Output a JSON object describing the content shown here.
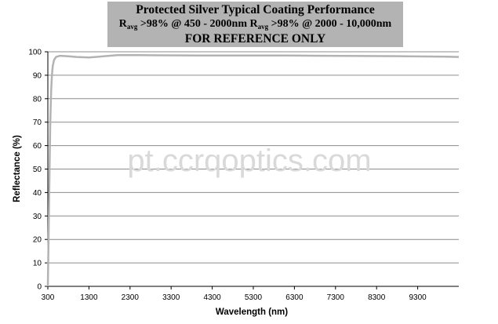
{
  "title": {
    "line1": "Protected Silver Typical Coating Performance",
    "line2_r1": "R",
    "line2_sub1": "avg",
    "line2_mid": " >98% @ 450 - 2000nm R",
    "line2_sub2": "avg",
    "line2_end": " >98% @ 2000 - 10,000nm",
    "line3": "FOR REFERENCE ONLY"
  },
  "watermark": "pt.ccrqoptics.com",
  "colors": {
    "title_bg": "#b3b3b3",
    "series": "#b3b3b3",
    "grid": "#8c8c8c"
  },
  "chart_data": {
    "type": "line",
    "title": "Protected Silver Typical Coating Performance",
    "xlabel": "Wavelength (nm)",
    "ylabel": "Reflectance (%)",
    "xlim": [
      300,
      10300
    ],
    "ylim": [
      0,
      100
    ],
    "xticks": [
      300,
      1300,
      2300,
      3300,
      4300,
      5300,
      6300,
      7300,
      8300,
      9300
    ],
    "yticks": [
      0,
      10,
      20,
      30,
      40,
      50,
      60,
      70,
      80,
      90,
      100
    ],
    "grid": "horizontal",
    "legend": "none",
    "series": [
      {
        "values_x": [
          300,
          320,
          340,
          360,
          380,
          400,
          420,
          450,
          500,
          600,
          800,
          1000,
          1300,
          1600,
          2000,
          2500,
          3000,
          4000,
          5000,
          6000,
          7000,
          8000,
          9000,
          10000,
          10300
        ],
        "values_y": [
          0,
          22,
          48,
          70,
          83,
          90,
          94,
          96.5,
          97.8,
          98.3,
          98.1,
          97.8,
          97.6,
          98.0,
          98.6,
          98.6,
          98.5,
          98.4,
          98.4,
          98.4,
          98.3,
          98.2,
          98.1,
          97.9,
          97.8
        ]
      }
    ]
  }
}
